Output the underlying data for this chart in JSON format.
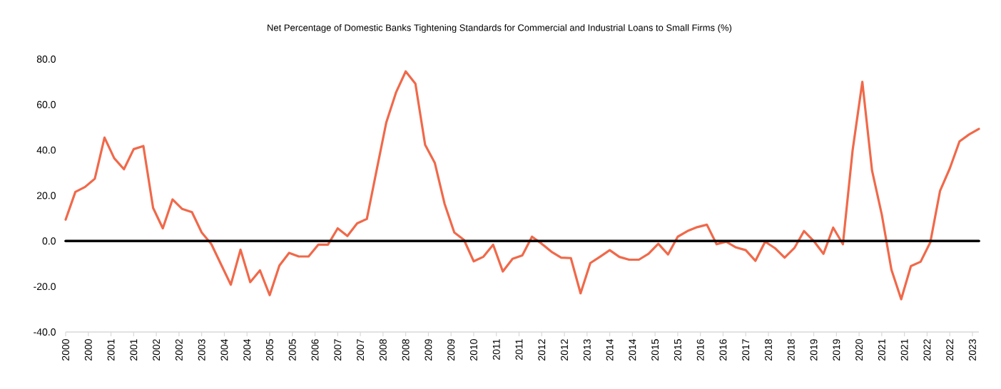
{
  "chart_data": {
    "type": "line",
    "title": "Net Percentage of Domestic Banks Tightening Standards for Commercial and Industrial Loans to Small Firms (%)",
    "x": [
      "2000-01",
      "2000-04",
      "2000-07",
      "2000-10",
      "2001-01",
      "2001-04",
      "2001-07",
      "2001-10",
      "2002-01",
      "2002-04",
      "2002-07",
      "2002-10",
      "2003-01",
      "2003-04",
      "2003-07",
      "2003-10",
      "2004-01",
      "2004-04",
      "2004-07",
      "2004-10",
      "2005-01",
      "2005-04",
      "2005-07",
      "2005-10",
      "2006-01",
      "2006-04",
      "2006-07",
      "2006-10",
      "2007-01",
      "2007-04",
      "2007-07",
      "2007-10",
      "2008-01",
      "2008-04",
      "2008-07",
      "2008-10",
      "2009-01",
      "2009-04",
      "2009-07",
      "2009-10",
      "2010-01",
      "2010-04",
      "2010-07",
      "2010-10",
      "2011-01",
      "2011-04",
      "2011-07",
      "2011-10",
      "2012-01",
      "2012-04",
      "2012-07",
      "2012-10",
      "2013-01",
      "2013-04",
      "2013-07",
      "2013-10",
      "2014-01",
      "2014-04",
      "2014-07",
      "2014-10",
      "2015-01",
      "2015-04",
      "2015-07",
      "2015-10",
      "2016-01",
      "2016-04",
      "2016-07",
      "2016-10",
      "2017-01",
      "2017-04",
      "2017-07",
      "2017-10",
      "2018-01",
      "2018-04",
      "2018-07",
      "2018-10",
      "2019-01",
      "2019-04",
      "2019-07",
      "2019-10",
      "2020-01",
      "2020-04",
      "2020-07",
      "2020-10",
      "2021-01",
      "2021-04",
      "2021-07",
      "2021-10",
      "2022-01",
      "2022-04",
      "2022-07",
      "2022-10",
      "2023-01",
      "2023-04",
      "2023-07"
    ],
    "series": [
      {
        "color": "#f0694a",
        "values": [
          9.4,
          21.6,
          23.8,
          27.4,
          45.5,
          36.4,
          31.6,
          40.4,
          41.8,
          14.6,
          5.6,
          18.3,
          14.1,
          12.7,
          3.8,
          -1.4,
          -10.3,
          -19.2,
          -3.8,
          -18.1,
          -12.9,
          -23.8,
          -10.8,
          -5.2,
          -6.8,
          -6.8,
          -1.6,
          -1.6,
          5.6,
          2.2,
          7.8,
          9.7,
          31,
          52.1,
          65.3,
          74.6,
          69.2,
          42.3,
          34.3,
          16.4,
          3.8,
          0.5,
          -8.9,
          -6.9,
          -1.6,
          -13.4,
          -7.8,
          -6.3,
          1.9,
          -1.2,
          -4.7,
          -7.3,
          -7.5,
          -23.0,
          -9.7,
          -6.9,
          -4.0,
          -7.0,
          -8.2,
          -8.2,
          -5.6,
          -1.2,
          -5.9,
          1.9,
          4.4,
          6.1,
          7.2,
          -1.4,
          -0.3,
          -2.8,
          -4.0,
          -8.7,
          -0.3,
          -3.1,
          -7.3,
          -3.1,
          4.4,
          0,
          -5.6,
          5.9,
          -1.4,
          39.9,
          70.0,
          31.0,
          11.7,
          -12.7,
          -25.6,
          -11.0,
          -9.1,
          -0.5,
          22.1,
          31.9,
          43.8,
          46.9,
          49.3
        ]
      }
    ],
    "xlim": [
      "2000-01",
      "2023-07"
    ],
    "xticks": [
      {
        "value": "2000-01",
        "label": "2000"
      },
      {
        "value": "2000-08",
        "label": "2000"
      },
      {
        "value": "2001-03",
        "label": "2001"
      },
      {
        "value": "2001-10",
        "label": "2001"
      },
      {
        "value": "2002-05",
        "label": "2002"
      },
      {
        "value": "2002-12",
        "label": "2002"
      },
      {
        "value": "2003-07",
        "label": "2003"
      },
      {
        "value": "2004-02",
        "label": "2004"
      },
      {
        "value": "2004-09",
        "label": "2004"
      },
      {
        "value": "2005-04",
        "label": "2005"
      },
      {
        "value": "2005-11",
        "label": "2005"
      },
      {
        "value": "2006-06",
        "label": "2006"
      },
      {
        "value": "2007-01",
        "label": "2007"
      },
      {
        "value": "2007-08",
        "label": "2007"
      },
      {
        "value": "2008-03",
        "label": "2008"
      },
      {
        "value": "2008-10",
        "label": "2008"
      },
      {
        "value": "2009-05",
        "label": "2009"
      },
      {
        "value": "2009-12",
        "label": "2009"
      },
      {
        "value": "2010-07",
        "label": "2010"
      },
      {
        "value": "2011-02",
        "label": "2011"
      },
      {
        "value": "2011-09",
        "label": "2011"
      },
      {
        "value": "2012-04",
        "label": "2012"
      },
      {
        "value": "2012-11",
        "label": "2012"
      },
      {
        "value": "2013-06",
        "label": "2013"
      },
      {
        "value": "2014-01",
        "label": "2014"
      },
      {
        "value": "2014-08",
        "label": "2014"
      },
      {
        "value": "2015-03",
        "label": "2015"
      },
      {
        "value": "2015-10",
        "label": "2015"
      },
      {
        "value": "2016-05",
        "label": "2016"
      },
      {
        "value": "2016-12",
        "label": "2016"
      },
      {
        "value": "2017-07",
        "label": "2017"
      },
      {
        "value": "2018-02",
        "label": "2018"
      },
      {
        "value": "2018-09",
        "label": "2018"
      },
      {
        "value": "2019-04",
        "label": "2019"
      },
      {
        "value": "2019-11",
        "label": "2019"
      },
      {
        "value": "2020-06",
        "label": "2020"
      },
      {
        "value": "2021-01",
        "label": "2021"
      },
      {
        "value": "2021-08",
        "label": "2021"
      },
      {
        "value": "2022-03",
        "label": "2022"
      },
      {
        "value": "2022-10",
        "label": "2022"
      },
      {
        "value": "2023-05",
        "label": "2023"
      }
    ],
    "ylim": [
      -40,
      80
    ],
    "yticks": [
      {
        "value": -40,
        "label": "-40.0"
      },
      {
        "value": -20,
        "label": "-20.0"
      },
      {
        "value": 0,
        "label": "0.0"
      },
      {
        "value": 20,
        "label": "20.0"
      },
      {
        "value": 40,
        "label": "40.0"
      },
      {
        "value": 60,
        "label": "60.0"
      },
      {
        "value": 80,
        "label": "80.0"
      }
    ],
    "ref_lines": [
      {
        "axis": "y",
        "value": 0,
        "color": "#000000"
      }
    ],
    "grid": false,
    "legend": false,
    "marker": "none",
    "line_style": "solid"
  }
}
